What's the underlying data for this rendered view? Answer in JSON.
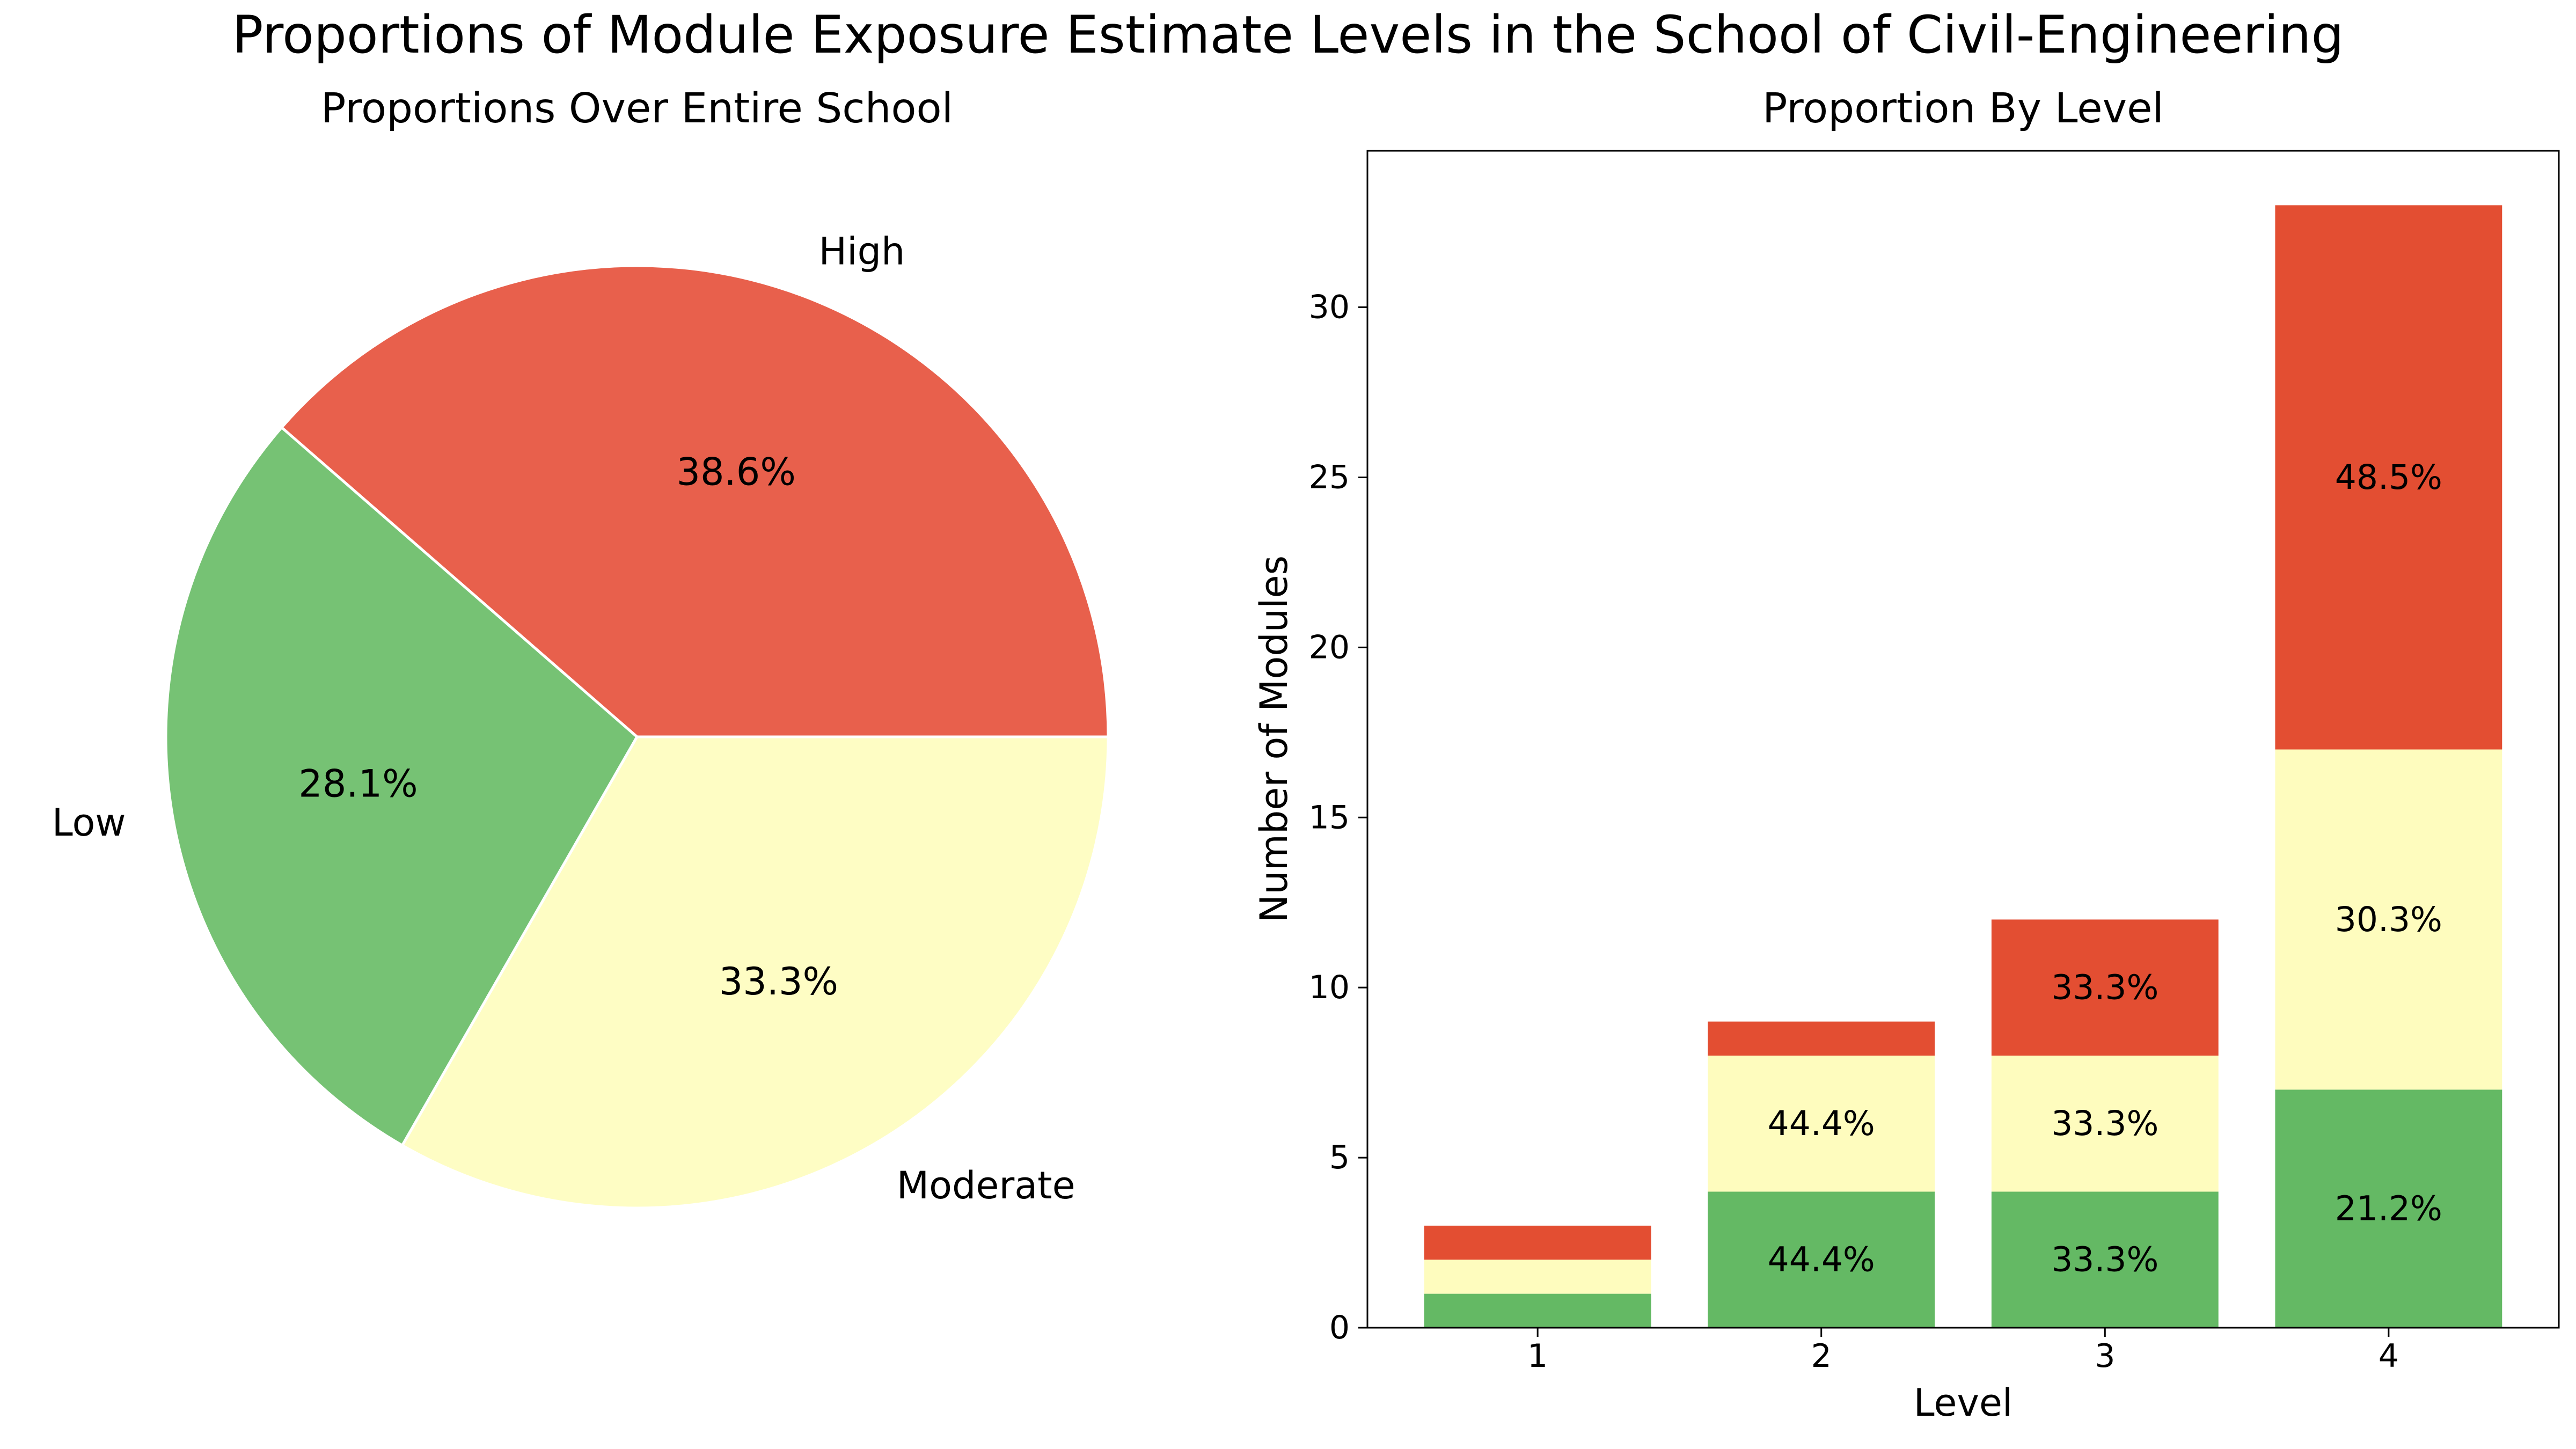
{
  "figure": {
    "title": "Proportions of Module Exposure Estimate Levels in the School of Civil-Engineering"
  },
  "chart_data": [
    {
      "type": "pie",
      "title": "Proportions Over Entire School",
      "slices": [
        {
          "label": "High",
          "pct": 38.6,
          "pct_label": "38.6%",
          "color": "#e8604c"
        },
        {
          "label": "Low",
          "pct": 28.1,
          "pct_label": "28.1%",
          "color": "#76c274"
        },
        {
          "label": "Moderate",
          "pct": 33.3,
          "pct_label": "33.3%",
          "color": "#fefdc4"
        }
      ],
      "start_angle_deg": 0,
      "direction": "counterclockwise"
    },
    {
      "type": "bar",
      "stacked": true,
      "title": "Proportion By Level",
      "xlabel": "Level",
      "ylabel": "Number of Modules",
      "categories": [
        "1",
        "2",
        "3",
        "4"
      ],
      "ylim": [
        0,
        34.6
      ],
      "yticks": [
        0,
        5,
        10,
        15,
        20,
        25,
        30
      ],
      "grid": false,
      "series": [
        {
          "key": "low",
          "color": "#64b964",
          "values": [
            1,
            4,
            4,
            7
          ],
          "labels": [
            "",
            "44.4%",
            "33.3%",
            "21.2%"
          ]
        },
        {
          "key": "moderate",
          "color": "#fefcbe",
          "values": [
            1,
            4,
            4,
            10
          ],
          "labels": [
            "",
            "44.4%",
            "33.3%",
            "30.3%"
          ]
        },
        {
          "key": "high",
          "color": "#e34e32",
          "values": [
            1,
            1,
            4,
            16
          ],
          "labels": [
            "",
            "",
            "33.3%",
            "48.5%"
          ]
        }
      ]
    }
  ]
}
